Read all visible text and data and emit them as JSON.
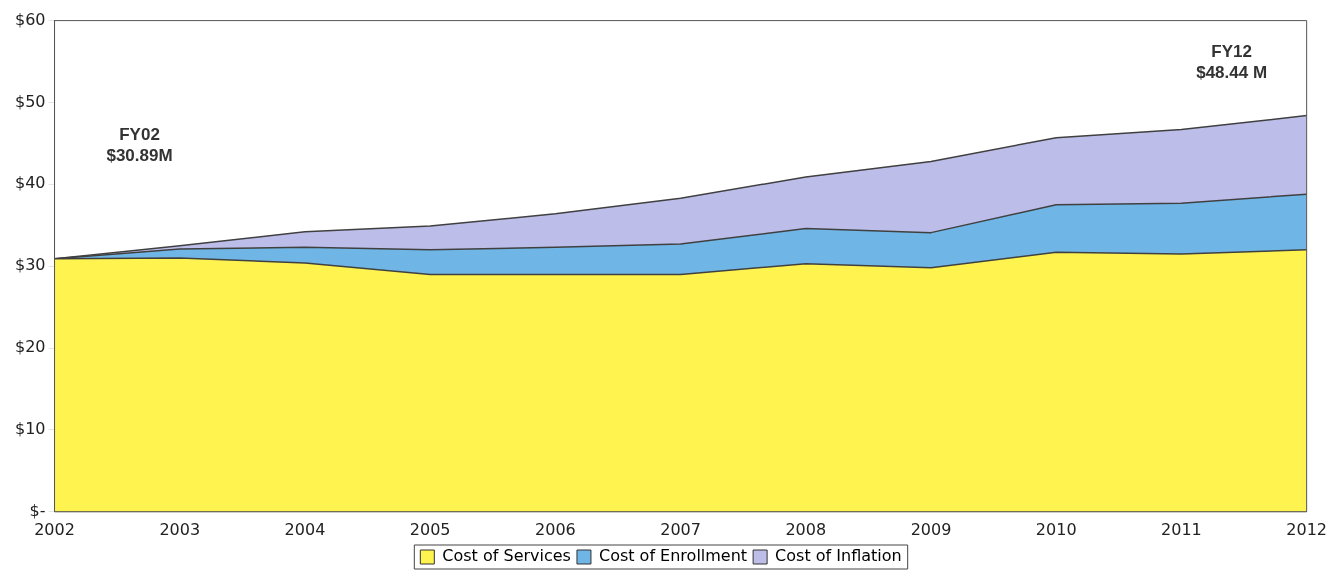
{
  "chart_data": {
    "type": "area",
    "stacked": true,
    "categories": [
      "2002",
      "2003",
      "2004",
      "2005",
      "2006",
      "2007",
      "2008",
      "2009",
      "2010",
      "2011",
      "2012"
    ],
    "series": [
      {
        "name": "Cost of Services",
        "color": "#fff44f",
        "values": [
          30.9,
          31.0,
          30.4,
          29.0,
          29.0,
          29.0,
          30.3,
          29.8,
          31.7,
          31.5,
          32.0
        ]
      },
      {
        "name": "Cost of Enrollment",
        "color": "#6fb6e6",
        "values": [
          0,
          1.1,
          1.9,
          3.0,
          3.3,
          3.7,
          4.3,
          4.3,
          5.8,
          6.2,
          6.8
        ]
      },
      {
        "name": "Cost of Inflation",
        "color": "#bcbde9",
        "values": [
          0,
          0.4,
          1.9,
          2.9,
          4.1,
          5.6,
          6.3,
          8.7,
          8.2,
          9.0,
          9.6
        ]
      }
    ],
    "ylim": [
      0,
      60
    ],
    "yticks": [
      {
        "value": 0,
        "label": "$-"
      },
      {
        "value": 10,
        "label": "$10"
      },
      {
        "value": 20,
        "label": "$20"
      },
      {
        "value": 30,
        "label": "$30"
      },
      {
        "value": 40,
        "label": "$40"
      },
      {
        "value": 50,
        "label": "$50"
      },
      {
        "value": 60,
        "label": "$60"
      }
    ],
    "annotations": [
      "FY02\n$30.89M",
      "FY12\n$48.44 M"
    ],
    "grid": false,
    "legend": "bottom",
    "marker": "none",
    "line_style": "solid"
  }
}
